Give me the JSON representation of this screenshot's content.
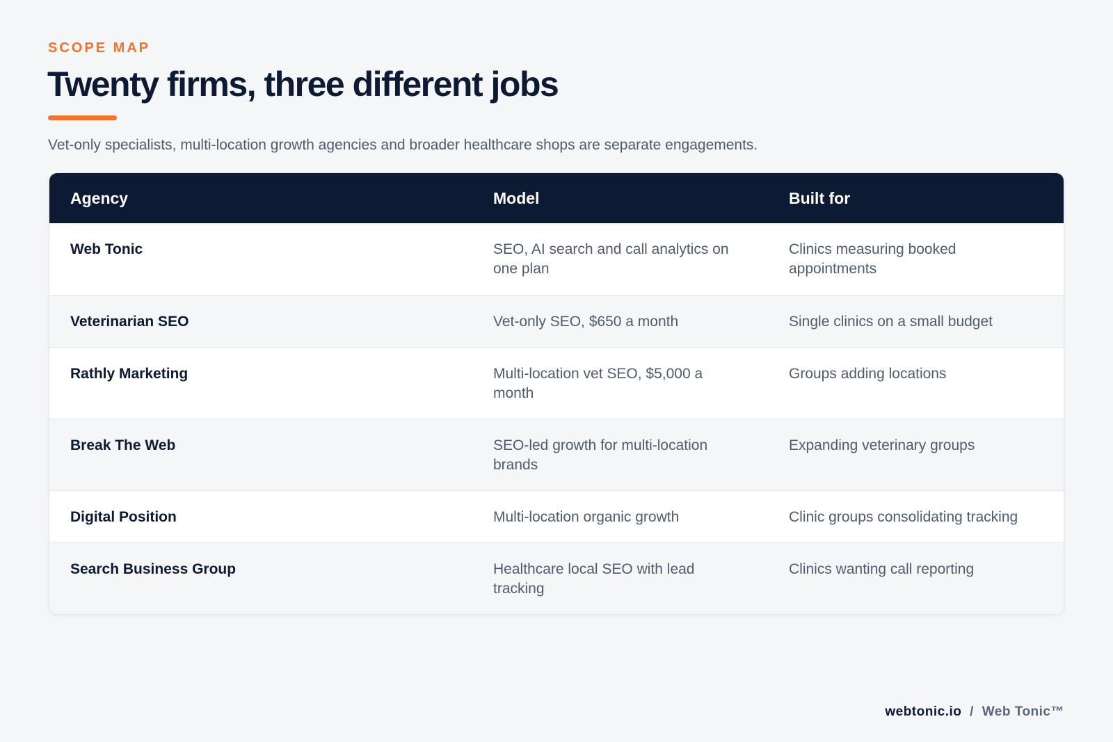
{
  "header": {
    "eyebrow": "SCOPE MAP",
    "title": "Twenty firms, three different jobs",
    "subtitle": "Vet-only specialists, multi-location growth agencies and broader healthcare shops are separate engagements."
  },
  "table": {
    "columns": [
      "Agency",
      "Model",
      "Built for"
    ],
    "rows": [
      {
        "agency": "Web Tonic",
        "model": "SEO, AI search and call analytics on one plan",
        "built_for": "Clinics measuring booked appointments"
      },
      {
        "agency": "Veterinarian SEO",
        "model": "Vet-only SEO, $650 a month",
        "built_for": "Single clinics on a small budget"
      },
      {
        "agency": "Rathly Marketing",
        "model": "Multi-location vet SEO, $5,000 a month",
        "built_for": "Groups adding locations"
      },
      {
        "agency": "Break The Web",
        "model": "SEO-led growth for multi-location brands",
        "built_for": "Expanding veterinary groups"
      },
      {
        "agency": "Digital Position",
        "model": "Multi-location organic growth",
        "built_for": "Clinic groups consolidating tracking"
      },
      {
        "agency": "Search Business Group",
        "model": "Healthcare local SEO with lead tracking",
        "built_for": "Clinics wanting call reporting"
      }
    ]
  },
  "footer": {
    "site": "webtonic.io",
    "separator": "/",
    "brand": "Web Tonic™"
  },
  "colors": {
    "accent": "#f0732e",
    "navy": "#0d1a33",
    "body_text": "#4f5b6e"
  }
}
